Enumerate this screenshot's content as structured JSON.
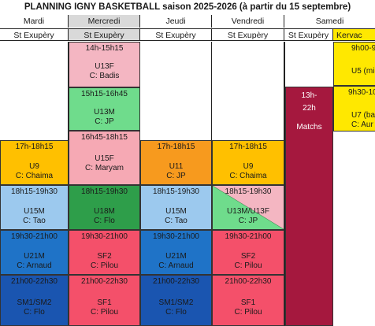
{
  "title": "PLANNING IGNY BASKETBALL saison 2025-2026 (à partir du 15 septembre)",
  "days": [
    {
      "name": "Mardi",
      "venue": "St Exupèry"
    },
    {
      "name": "Mercredi",
      "venue": "St Exupèry"
    },
    {
      "name": "Jeudi",
      "venue": "St Exupèry"
    },
    {
      "name": "Vendredi",
      "venue": "St Exupèry"
    },
    {
      "name": "Samedi",
      "venue": "St Exupèry"
    },
    {
      "name": "",
      "venue": "Kervac"
    }
  ],
  "colors": {
    "pink": "#f4b6c2",
    "green": "#6fdc8c",
    "pink2": "#f6a9b4",
    "yellow": "#ffc000",
    "orange": "#f79a1e",
    "lightblue": "#9cc9ee",
    "darkgreen": "#2e9e4a",
    "blue": "#1f73c7",
    "red": "#f4506a",
    "darkblue": "#1a55b0",
    "maroon": "#a5183e",
    "brightyellow": "#ffe800"
  },
  "sessions": {
    "mer1": {
      "time": "14h-15h15",
      "team": "U13F",
      "coach": "C: Badis"
    },
    "mer2": {
      "time": "15h15-16h45",
      "team": "U13M",
      "coach": "C: JP"
    },
    "mer3": {
      "time": "16h45-18h15",
      "team": "U15F",
      "coach": "C: Maryam"
    },
    "mar1": {
      "time": "17h-18h15",
      "team": "U9",
      "coach": "C: Chaima"
    },
    "jeu1": {
      "time": "17h-18h15",
      "team": "U11",
      "coach": "C: JP"
    },
    "ven1": {
      "time": "17h-18h15",
      "team": "U9",
      "coach": "C: Chaima"
    },
    "mar2": {
      "time": "18h15-19h30",
      "team": "U15M",
      "coach": "C: Tao"
    },
    "mer4": {
      "time": "18h15-19h30",
      "team": "U18M",
      "coach": "C: Flo"
    },
    "jeu2": {
      "time": "18h15-19h30",
      "team": "U15M",
      "coach": "C: Tao"
    },
    "ven2": {
      "time": "18h15-19h30",
      "team": "U13M/U13F",
      "coach": "C: JP"
    },
    "mar3": {
      "time": "19h30-21h00",
      "team": "U21M",
      "coach": "C: Arnaud"
    },
    "mer5": {
      "time": "19h30-21h00",
      "team": "SF2",
      "coach": "C: Pilou"
    },
    "jeu3": {
      "time": "19h30-21h00",
      "team": "U21M",
      "coach": "C: Arnaud"
    },
    "ven3": {
      "time": "19h30-21h00",
      "team": "SF2",
      "coach": "C: Pilou"
    },
    "mar4": {
      "time": "21h00-22h30",
      "team": "SM1/SM2",
      "coach": "C: Flo"
    },
    "mer6": {
      "time": "21h00-22h30",
      "team": "SF1",
      "coach": "C: Pilou"
    },
    "jeu4": {
      "time": "21h00-22h30",
      "team": "SM1/SM2",
      "coach": "C: Flo"
    },
    "ven4": {
      "time": "21h00-22h30",
      "team": "SF1",
      "coach": "C: Pilou"
    },
    "sam1": {
      "time": "13h-",
      "time2": "22h",
      "team": "Matchs"
    },
    "ker1": {
      "time": "9h00-9",
      "team": "U5 (mic"
    },
    "ker2": {
      "time": "9h30-10",
      "team": "U7 (ba",
      "coach": "C: Aur"
    }
  }
}
